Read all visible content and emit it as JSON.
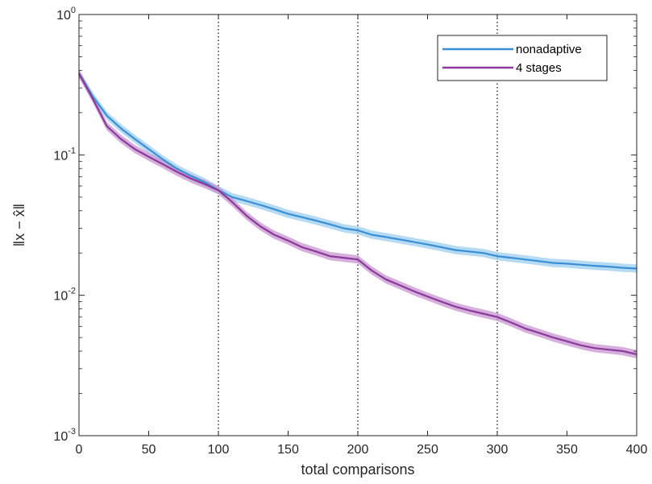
{
  "chart_data": {
    "type": "line",
    "xlabel": "total comparisons",
    "ylabel": "‖x − x̂‖",
    "xscale": "linear",
    "yscale": "log",
    "xlim": [
      0,
      400
    ],
    "ylim": [
      0.001,
      1
    ],
    "x_ticks": [
      0,
      50,
      100,
      150,
      200,
      250,
      300,
      350,
      400
    ],
    "x_tick_labels": [
      "0",
      "50",
      "100",
      "150",
      "200",
      "250",
      "300",
      "350",
      "400"
    ],
    "y_ticks": [
      0.001,
      0.01,
      0.1,
      1
    ],
    "y_tick_labels": [
      {
        "base": "10",
        "exp": "-3"
      },
      {
        "base": "10",
        "exp": "-2"
      },
      {
        "base": "10",
        "exp": "-1"
      },
      {
        "base": "10",
        "exp": "0"
      }
    ],
    "reference_lines": {
      "x": [
        100,
        200,
        300
      ],
      "style": "dotted",
      "color": "#000000"
    },
    "grid": false,
    "legend_position": "top-right",
    "x": [
      0,
      10,
      20,
      30,
      40,
      50,
      60,
      70,
      80,
      90,
      100,
      110,
      120,
      130,
      140,
      150,
      160,
      170,
      180,
      190,
      200,
      210,
      220,
      230,
      240,
      250,
      260,
      270,
      280,
      290,
      300,
      310,
      320,
      330,
      340,
      350,
      360,
      370,
      380,
      390,
      400
    ],
    "series": [
      {
        "name": "nonadaptive",
        "color": "#3a8fd4",
        "band_color": "#9ccdf0",
        "values": [
          0.38,
          0.26,
          0.19,
          0.155,
          0.13,
          0.11,
          0.093,
          0.08,
          0.071,
          0.064,
          0.056,
          0.05,
          0.047,
          0.044,
          0.041,
          0.038,
          0.036,
          0.034,
          0.032,
          0.03,
          0.029,
          0.027,
          0.026,
          0.025,
          0.024,
          0.023,
          0.022,
          0.021,
          0.0205,
          0.02,
          0.019,
          0.0185,
          0.018,
          0.0175,
          0.017,
          0.0168,
          0.0165,
          0.0162,
          0.016,
          0.0157,
          0.0155
        ]
      },
      {
        "name": "4 stages",
        "color": "#8a3a9a",
        "band_color": "#c894d0",
        "values": [
          0.38,
          0.25,
          0.16,
          0.13,
          0.11,
          0.097,
          0.086,
          0.076,
          0.068,
          0.062,
          0.056,
          0.046,
          0.037,
          0.031,
          0.027,
          0.0245,
          0.022,
          0.0205,
          0.019,
          0.0185,
          0.018,
          0.015,
          0.013,
          0.0118,
          0.0107,
          0.0098,
          0.009,
          0.0083,
          0.0078,
          0.0074,
          0.007,
          0.0064,
          0.0058,
          0.0054,
          0.005,
          0.0047,
          0.0044,
          0.0042,
          0.0041,
          0.004,
          0.0038
        ]
      }
    ]
  }
}
